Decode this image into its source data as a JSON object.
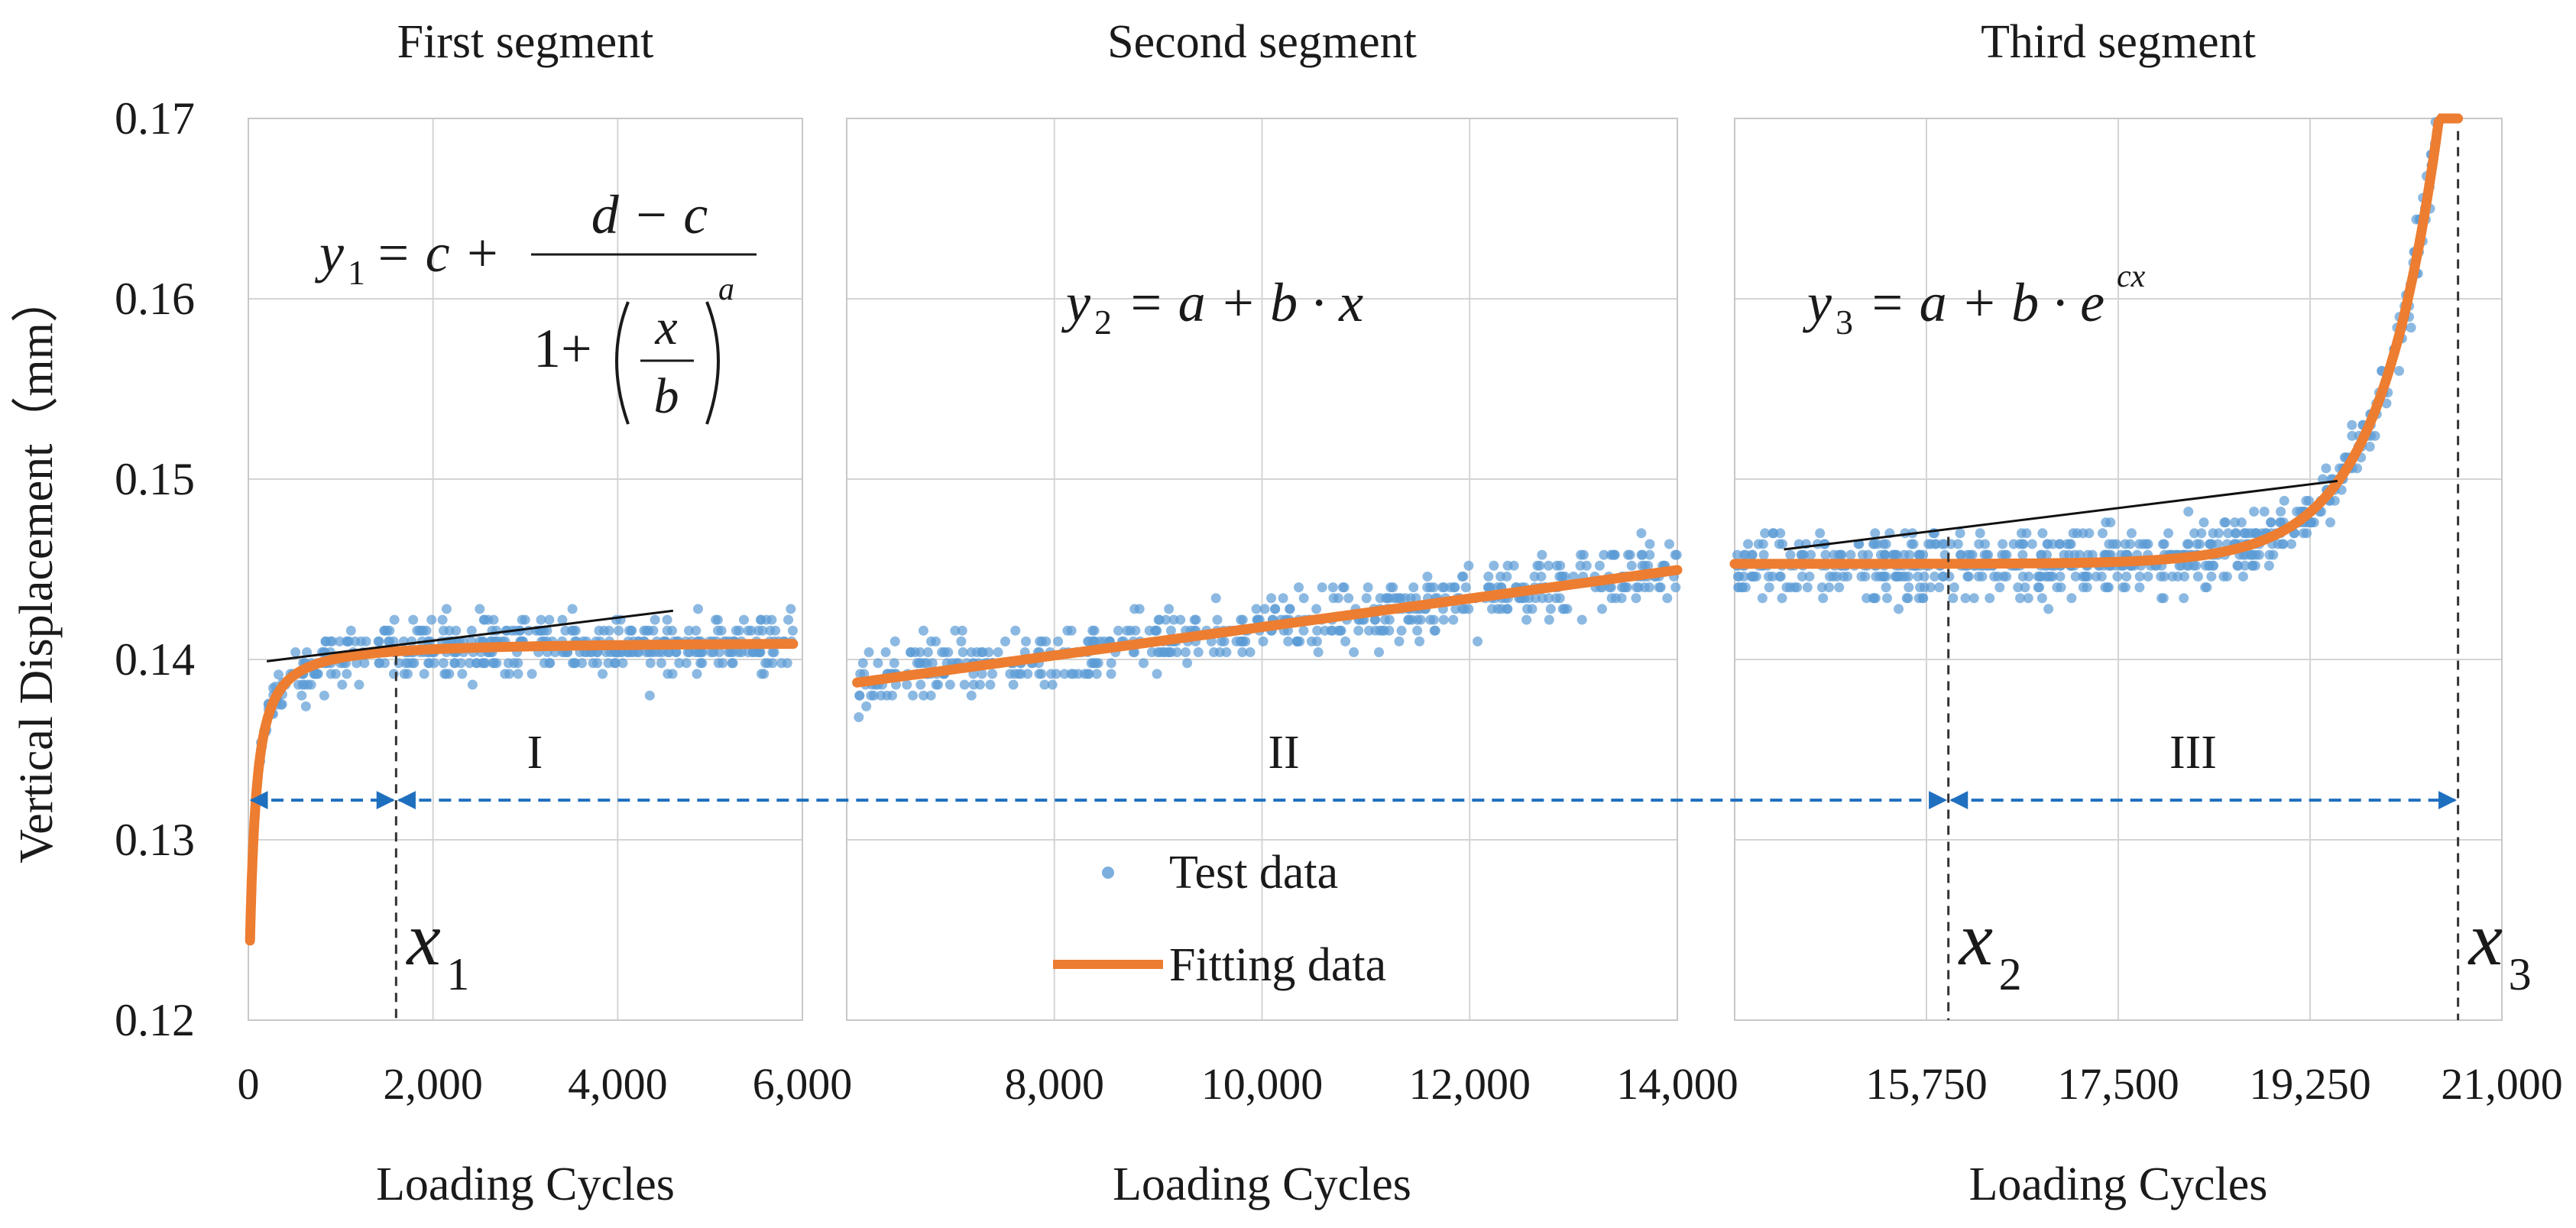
{
  "chart_data": {
    "type": "scatter",
    "ylabel": "Vertical Displacement（mm）",
    "ylim": [
      0.12,
      0.17
    ],
    "yticks": [
      "0.12",
      "0.13",
      "0.14",
      "0.15",
      "0.16",
      "0.17"
    ],
    "grid": true,
    "legend": {
      "placement": "bottom-left of middle panel",
      "entries": [
        {
          "key": "test",
          "label": "Test data",
          "color": "#5b9bd5",
          "marker": "dot"
        },
        {
          "key": "fit",
          "label": "Fitting data",
          "color": "#ed7d31",
          "marker": "line"
        }
      ]
    },
    "colors": {
      "test": "#5b9bd5",
      "fit": "#ed7d31",
      "tangent": "#111111",
      "arrow": "#1f6fbf",
      "grid": "#d4d4d4",
      "frame": "#c8c8c8"
    },
    "panels": [
      {
        "title": "First segment",
        "xlabel": "Loading Cycles",
        "xlim": [
          0,
          6000
        ],
        "xticks": [
          "0",
          "2,000",
          "4,000",
          "6,000"
        ],
        "xgrid": [
          0,
          2000,
          4000,
          6000
        ],
        "model": {
          "kind": "logistic",
          "c": 0.12,
          "d": 0.141,
          "b": 60,
          "a": 1.1
        },
        "tangent": [
          [
            200,
            0.1399
          ],
          [
            4600,
            0.1427
          ]
        ],
        "equation": {
          "lhs": "y",
          "sub": "1",
          "rhs": "= c +",
          "num": "d − c",
          "den_pre": "1+",
          "den_x": "x",
          "den_b": "b",
          "exp": "a"
        },
        "scatter": {
          "x0": 120,
          "x1": 5900,
          "n": 420,
          "noise": 0.0016,
          "steps": 0.0006
        },
        "region": "I",
        "boundary": {
          "x": 1600,
          "label": "x",
          "sub": "1"
        }
      },
      {
        "title": "Second segment",
        "xlabel": "Loading Cycles",
        "xlim": [
          6000,
          14000
        ],
        "xticks": [
          "6,000",
          "8,000",
          "10,000",
          "12,000",
          "14,000"
        ],
        "xgrid": [
          6000,
          8000,
          10000,
          12000,
          14000
        ],
        "model": {
          "kind": "linear",
          "a": 0.1339,
          "b": 7.9e-07
        },
        "equation": {
          "lhs": "y",
          "sub": "2",
          "rhs": "= a + b · x"
        },
        "scatter": {
          "x0": 6100,
          "x1": 14000,
          "n": 520,
          "noise": 0.0018,
          "steps": 0.0006
        },
        "region": "II"
      },
      {
        "title": "Third segment",
        "xlabel": "Loading Cycles",
        "xlim": [
          14000,
          21000
        ],
        "xticks": [
          "14,000",
          "15,750",
          "17,500",
          "19,250",
          "21,000"
        ],
        "xgrid": [
          14000,
          15750,
          17500,
          19250,
          21000
        ],
        "model": {
          "kind": "exponential",
          "a": 0.1453,
          "b": 1.44e-18,
          "c": 0.00183
        },
        "tangent": [
          [
            14450,
            0.1461
          ],
          [
            19500,
            0.1499
          ]
        ],
        "equation": {
          "lhs": "y",
          "sub": "3",
          "rhs": "= a + b · e",
          "exp": "cx"
        },
        "scatter": {
          "x0": 14000,
          "x1": 20600,
          "n": 620,
          "noise": 0.0019,
          "steps": 0.0006
        },
        "region": "III",
        "boundaries": [
          {
            "x": 15950,
            "label": "x",
            "sub": "2"
          },
          {
            "x": 20600,
            "label": "x",
            "sub": "3"
          }
        ]
      }
    ],
    "arrows": [
      {
        "from": [
          0,
          0.1322
        ],
        "to": [
          1600,
          0.1322
        ],
        "panel_from": 0,
        "panel_to": 0
      },
      {
        "from": [
          1600,
          0.1322
        ],
        "to": [
          15950,
          0.1322
        ],
        "panel_from": 0,
        "panel_to": 2
      },
      {
        "from": [
          15950,
          0.1322
        ],
        "to": [
          20600,
          0.1322
        ],
        "panel_from": 2,
        "panel_to": 2
      }
    ]
  }
}
